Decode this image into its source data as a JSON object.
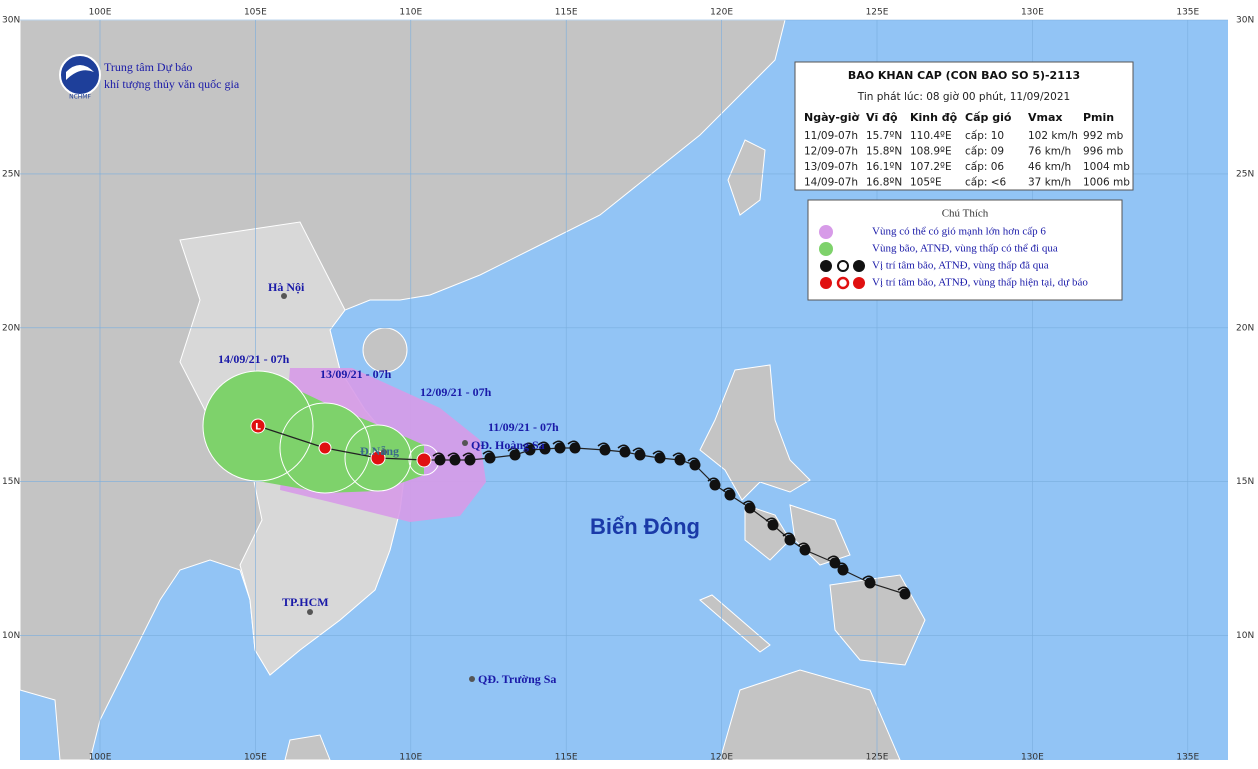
{
  "axes": {
    "lon_labels": [
      "100E",
      "105E",
      "110E",
      "115E",
      "120E",
      "125E",
      "130E",
      "135E"
    ],
    "lat_labels": [
      "30N",
      "25N",
      "20N",
      "15N",
      "10N"
    ]
  },
  "logo": {
    "line1": "Trung tâm Dự báo",
    "line2": "khí tượng thủy văn quốc gia",
    "badge": "NCHMF"
  },
  "bulletin": {
    "title": "BAO KHAN CAP (CON BAO SO 5)-2113",
    "subtitle": "Tin phát lúc: 08 giờ 00 phút, 11/09/2021",
    "header": [
      "Ngày-giờ",
      "Vĩ độ",
      "Kinh độ",
      "Cấp gió",
      "Vmax",
      "Pmin"
    ],
    "rows": [
      [
        "11/09-07h",
        "15.7ºN",
        "110.4ºE",
        "cấp: 10",
        "102 km/h",
        "992 mb"
      ],
      [
        "12/09-07h",
        "15.8ºN",
        "108.9ºE",
        "cấp: 09",
        "76 km/h",
        "996 mb"
      ],
      [
        "13/09-07h",
        "16.1ºN",
        "107.2ºE",
        "cấp: 06",
        "46 km/h",
        "1004 mb"
      ],
      [
        "14/09-07h",
        "16.8ºN",
        "105ºE",
        "cấp: <6",
        "37 km/h",
        "1006 mb"
      ]
    ]
  },
  "legend": {
    "title": "Chú Thích",
    "items": [
      "Vùng có thể có gió mạnh lớn hơn cấp 6",
      "Vùng bão, ATNĐ, vùng thấp có thể đi qua",
      "Vị trí tâm bão, ATNĐ, vùng thấp đã qua",
      "Vị trí tâm bão, ATNĐ, vùng thấp hiện tại, dự báo"
    ]
  },
  "map_labels": {
    "hanoi": "Hà Nội",
    "d14": "14/09/21 - 07h",
    "d13": "13/09/21 - 07h",
    "d12": "12/09/21 - 07h",
    "d11": "11/09/21 - 07h",
    "danang": "Đ.Nẵng",
    "hoangsa": "QĐ. Hoàng Sa",
    "sea": "Biển Đông",
    "hcm": "TP.HCM",
    "truongsa": "QĐ. Trường Sa"
  }
}
